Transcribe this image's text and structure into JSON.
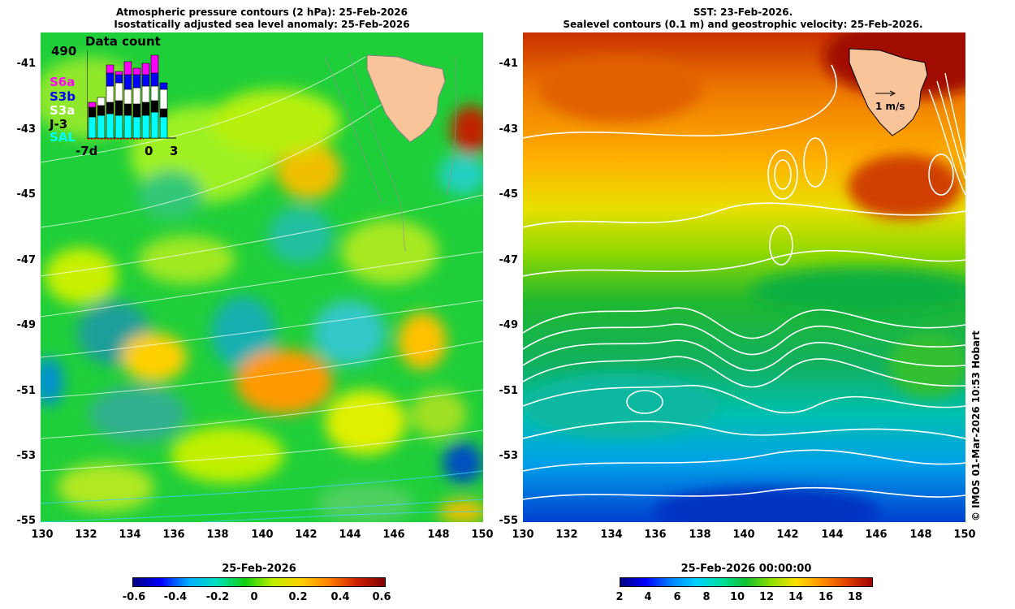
{
  "left": {
    "title_line1": "Atmospheric pressure contours (2 hPa): 25-Feb-2026",
    "title_line2": "Isostatically adjusted sea level anomaly: 25-Feb-2026",
    "colorbar": {
      "title": "25-Feb-2026",
      "ticks": [
        "-0.6",
        "-0.4",
        "-0.2",
        "0",
        "0.2",
        "0.4",
        "0.6"
      ],
      "colors": [
        "#00007f",
        "#0000ff",
        "#00b0ff",
        "#00e0c0",
        "#10d010",
        "#c0f000",
        "#ffd000",
        "#ff8000",
        "#cc2000",
        "#800000"
      ]
    },
    "inset": {
      "title": "Data count",
      "max_label": "490",
      "x_labels": [
        "-7d",
        "0",
        "3"
      ],
      "legend": [
        {
          "label": "S6a",
          "color": "#ff00ff"
        },
        {
          "label": "S3b",
          "color": "#0000ff"
        },
        {
          "label": "S3a",
          "color": "#ffffff"
        },
        {
          "label": "J-3",
          "color": "#000000"
        },
        {
          "label": "SAL",
          "color": "#00ffff"
        }
      ]
    }
  },
  "right": {
    "title_line1": "SST: 23-Feb-2026.",
    "title_line2": "Sealevel contours (0.1 m) and geostrophic velocity: 25-Feb-2026.",
    "scale_label": "1 m/s",
    "colorbar": {
      "title": "25-Feb-2026 00:00:00",
      "ticks": [
        "2",
        "4",
        "6",
        "8",
        "10",
        "12",
        "14",
        "16",
        "18"
      ],
      "colors": [
        "#00007f",
        "#0000ff",
        "#0080ff",
        "#00d0ff",
        "#00e0a0",
        "#10c030",
        "#90e000",
        "#ffe000",
        "#ff9000",
        "#e04000",
        "#a00000"
      ]
    }
  },
  "axes": {
    "y_ticks": [
      "-41",
      "-43",
      "-45",
      "-47",
      "-49",
      "-51",
      "-53",
      "-55"
    ],
    "x_ticks": [
      "130",
      "132",
      "134",
      "136",
      "138",
      "140",
      "142",
      "144",
      "146",
      "148",
      "150"
    ]
  },
  "credit": "© IMOS 01-Mar-2026 10:53 Hobart"
}
